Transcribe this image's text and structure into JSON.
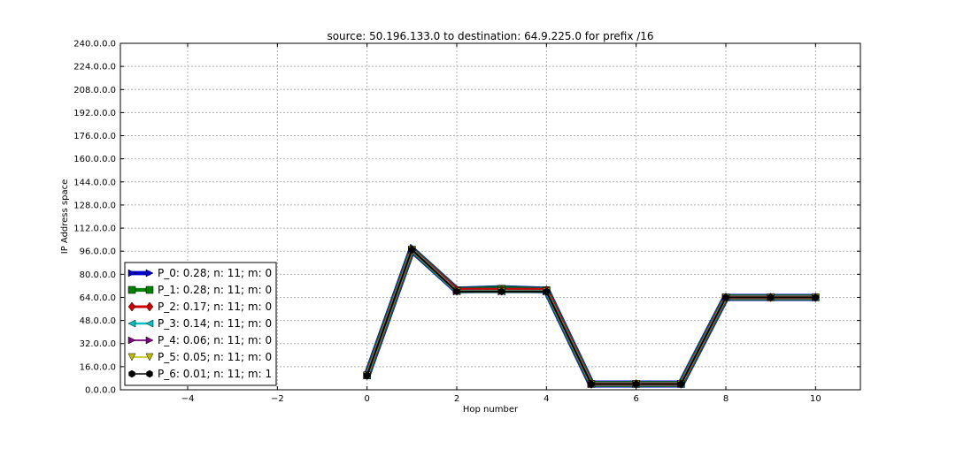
{
  "chart_data": {
    "type": "line",
    "title": "source: 50.196.133.0 to destination: 64.9.225.0 for prefix /16",
    "xlabel": "Hop number",
    "ylabel": "IP Address space",
    "xlim": [
      -5.5,
      11
    ],
    "ylim": [
      0,
      240
    ],
    "xticks": [
      -4,
      -2,
      0,
      2,
      4,
      6,
      8,
      10
    ],
    "xtick_labels": [
      "−4",
      "−2",
      "0",
      "2",
      "4",
      "6",
      "8",
      "10"
    ],
    "yticks": [
      0,
      16,
      32,
      48,
      64,
      80,
      96,
      112,
      128,
      144,
      160,
      176,
      192,
      208,
      224,
      240
    ],
    "ytick_labels": [
      "0.0.0.0",
      "16.0.0.0",
      "32.0.0.0",
      "48.0.0.0",
      "64.0.0.0",
      "80.0.0.0",
      "96.0.0.0",
      "112.0.0.0",
      "128.0.0.0",
      "144.0.0.0",
      "160.0.0.0",
      "176.0.0.0",
      "192.0.0.0",
      "208.0.0.0",
      "224.0.0.0",
      "240.0.0.0"
    ],
    "grid": true,
    "legend_position": "lower-left",
    "x": [
      0,
      1,
      2,
      3,
      4,
      5,
      6,
      7,
      8,
      9,
      10
    ],
    "series": [
      {
        "name": "P_0: 0.28; n: 11; m: 0",
        "color": "#0000cc",
        "marker": "arrow-right",
        "values": [
          10,
          97,
          69,
          70,
          69,
          4,
          4,
          4,
          64,
          64,
          64
        ]
      },
      {
        "name": "P_1: 0.28; n: 11; m: 0",
        "color": "#008000",
        "marker": "square",
        "values": [
          10,
          97,
          69,
          70,
          69,
          4,
          4,
          4,
          64,
          64,
          64
        ]
      },
      {
        "name": "P_2: 0.17; n: 11; m: 0",
        "color": "#cc0000",
        "marker": "diamond",
        "values": [
          10,
          97,
          69,
          69,
          69,
          4,
          4,
          4,
          64,
          64,
          64
        ]
      },
      {
        "name": "P_3: 0.14; n: 11; m: 0",
        "color": "#00bfbf",
        "marker": "arrow-left",
        "values": [
          10,
          97,
          68,
          68,
          68,
          4,
          4,
          4,
          64,
          64,
          64
        ]
      },
      {
        "name": "P_4: 0.06; n: 11; m: 0",
        "color": "#800080",
        "marker": "triangle-right",
        "values": [
          10,
          97,
          68,
          68,
          68,
          4,
          4,
          4,
          64,
          64,
          64
        ]
      },
      {
        "name": "P_5: 0.05; n: 11; m: 0",
        "color": "#bfbf00",
        "marker": "triangle-down",
        "values": [
          10,
          97,
          68,
          68,
          68,
          4,
          4,
          4,
          64,
          64,
          64
        ]
      },
      {
        "name": "P_6: 0.01; n: 11; m: 1",
        "color": "#000000",
        "marker": "hexagon",
        "values": [
          10,
          97,
          68,
          68,
          68,
          4,
          4,
          4,
          64,
          64,
          64
        ]
      }
    ]
  }
}
